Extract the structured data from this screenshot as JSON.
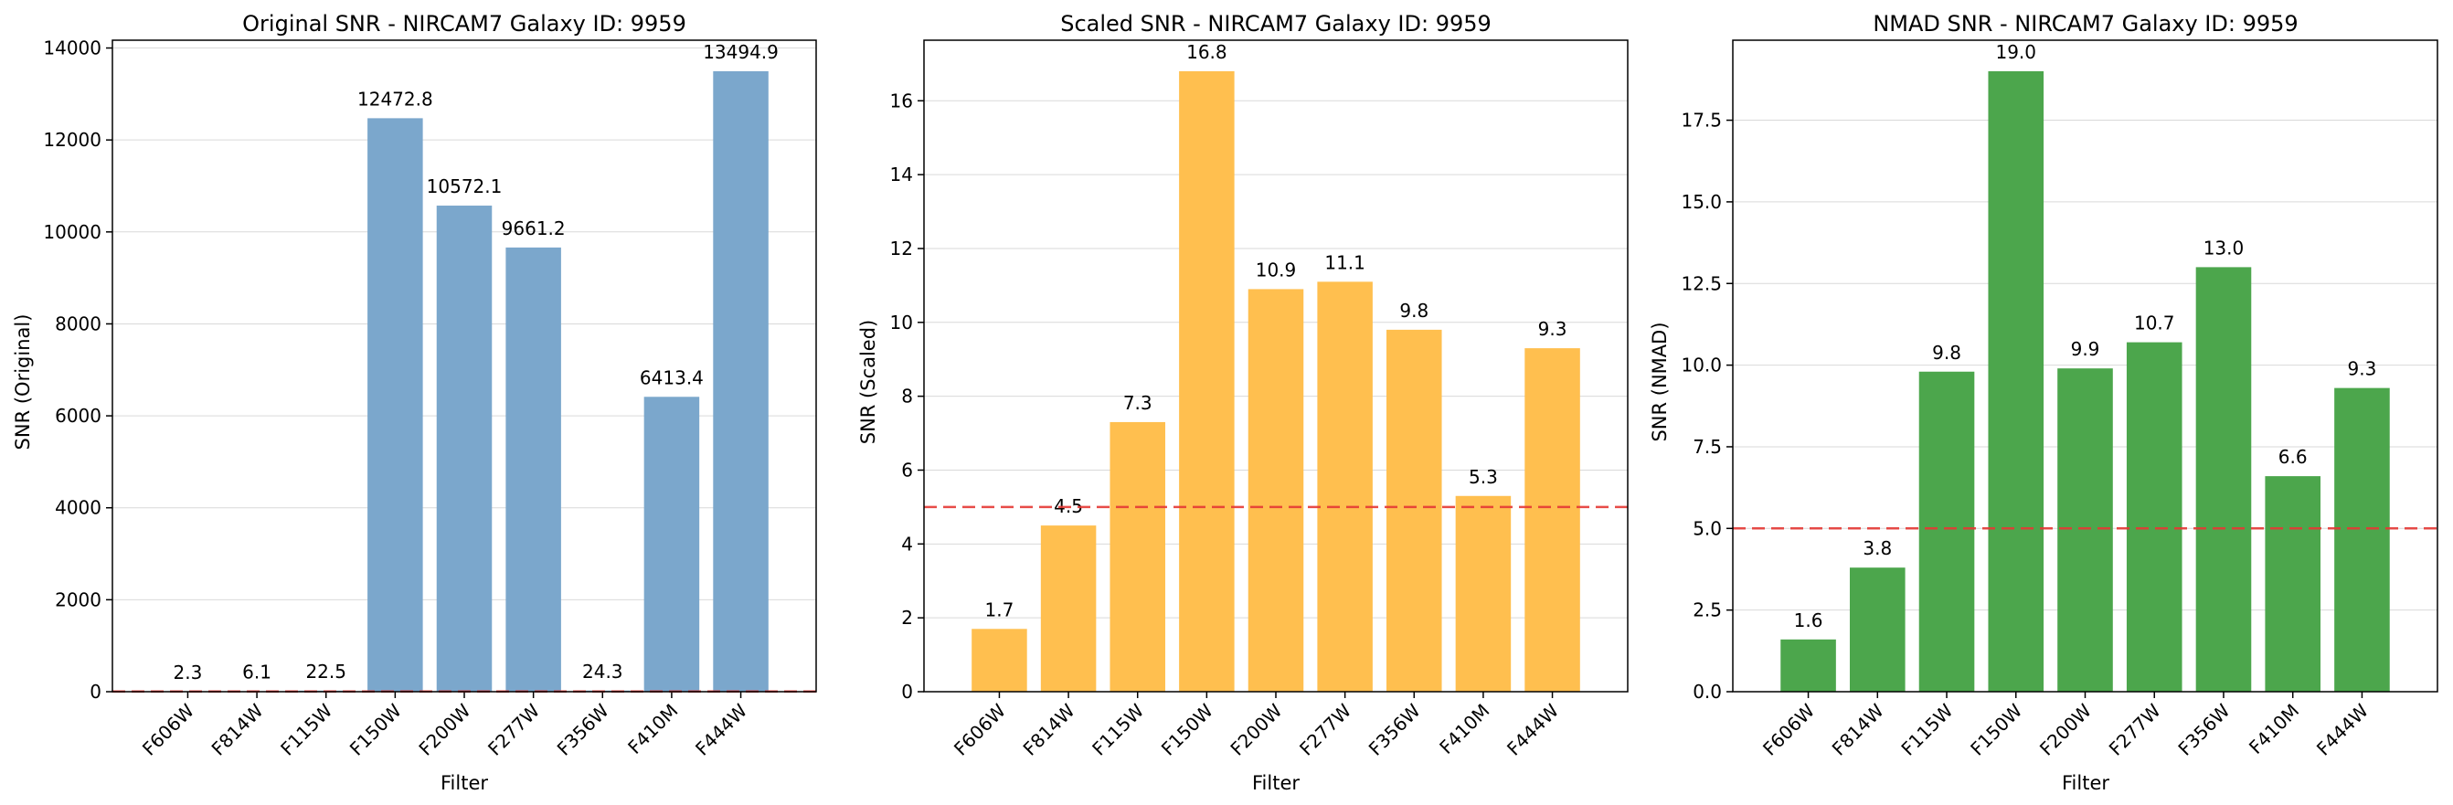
{
  "chart_data": [
    {
      "type": "bar",
      "title": "Original SNR - NIRCAM7 Galaxy ID: 9959",
      "xlabel": "Filter",
      "ylabel": "SNR (Original)",
      "categories": [
        "F606W",
        "F814W",
        "F115W",
        "F150W",
        "F200W",
        "F277W",
        "F356W",
        "F410M",
        "F444W"
      ],
      "values": [
        2.3,
        6.1,
        22.5,
        12472.8,
        10572.1,
        9661.2,
        24.3,
        6413.4,
        13494.9
      ],
      "data_labels": [
        "2.3",
        "6.1",
        "22.5",
        "12472.8",
        "10572.1",
        "9661.2",
        "24.3",
        "6413.4",
        "13494.9"
      ],
      "ylim": [
        0,
        14169.6
      ],
      "yticks": [
        0,
        2000,
        4000,
        6000,
        8000,
        10000,
        12000,
        14000
      ],
      "ytick_labels": [
        "0",
        "2000",
        "4000",
        "6000",
        "8000",
        "10000",
        "12000",
        "14000"
      ],
      "threshold": 5,
      "bar_color": "#7ba7cc",
      "grid": "y",
      "legend": "none"
    },
    {
      "type": "bar",
      "title": "Scaled SNR - NIRCAM7 Galaxy ID: 9959",
      "xlabel": "Filter",
      "ylabel": "SNR (Scaled)",
      "categories": [
        "F606W",
        "F814W",
        "F115W",
        "F150W",
        "F200W",
        "F277W",
        "F356W",
        "F410M",
        "F444W"
      ],
      "values": [
        1.7,
        4.5,
        7.3,
        16.8,
        10.9,
        11.1,
        9.8,
        5.3,
        9.3
      ],
      "data_labels": [
        "1.7",
        "4.5",
        "7.3",
        "16.8",
        "10.9",
        "11.1",
        "9.8",
        "5.3",
        "9.3"
      ],
      "ylim": [
        0,
        17.64
      ],
      "yticks": [
        0,
        2,
        4,
        6,
        8,
        10,
        12,
        14,
        16
      ],
      "ytick_labels": [
        "0",
        "2",
        "4",
        "6",
        "8",
        "10",
        "12",
        "14",
        "16"
      ],
      "threshold": 5,
      "bar_color": "#ffbf4f",
      "grid": "y",
      "legend": "none"
    },
    {
      "type": "bar",
      "title": "NMAD SNR - NIRCAM7 Galaxy ID: 9959",
      "xlabel": "Filter",
      "ylabel": "SNR (NMAD)",
      "categories": [
        "F606W",
        "F814W",
        "F115W",
        "F150W",
        "F200W",
        "F277W",
        "F356W",
        "F410M",
        "F444W"
      ],
      "values": [
        1.6,
        3.8,
        9.8,
        19.0,
        9.9,
        10.7,
        13.0,
        6.6,
        9.3
      ],
      "data_labels": [
        "1.6",
        "3.8",
        "9.8",
        "19.0",
        "9.9",
        "10.7",
        "13.0",
        "6.6",
        "9.3"
      ],
      "ylim": [
        0,
        19.95
      ],
      "yticks": [
        0,
        2.5,
        5,
        7.5,
        10,
        12.5,
        15,
        17.5
      ],
      "ytick_labels": [
        "0.0",
        "2.5",
        "5.0",
        "7.5",
        "10.0",
        "12.5",
        "15.0",
        "17.5"
      ],
      "threshold": 5,
      "bar_color": "#4ca64c",
      "grid": "y",
      "legend": "none"
    }
  ]
}
